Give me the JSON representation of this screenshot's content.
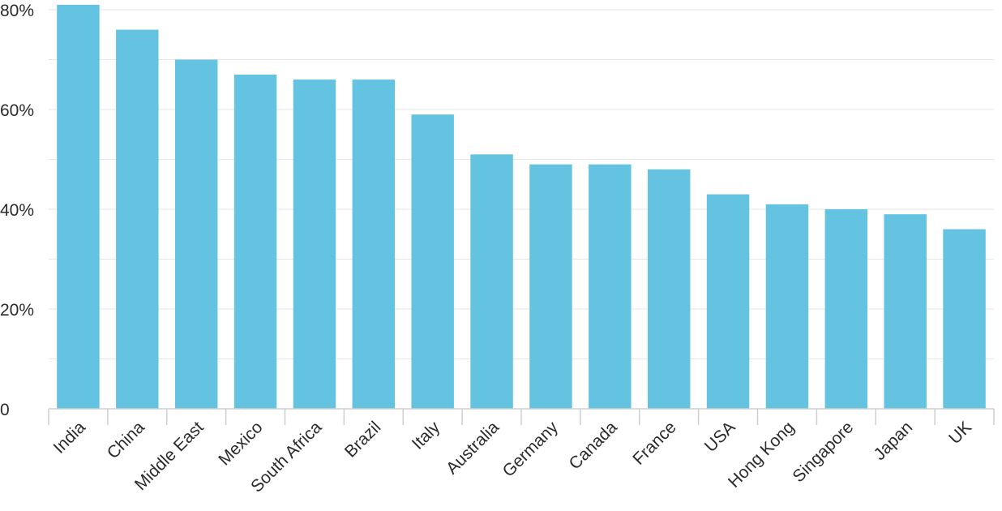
{
  "chart_data": {
    "type": "bar",
    "title": "",
    "xlabel": "",
    "ylabel": "",
    "categories": [
      "India",
      "China",
      "Middle East",
      "Mexico",
      "South Africa",
      "Brazil",
      "Italy",
      "Australia",
      "Germany",
      "Canada",
      "France",
      "USA",
      "Hong Kong",
      "Singapore",
      "Japan",
      "UK"
    ],
    "values": [
      81,
      76,
      70,
      67,
      66,
      66,
      59,
      51,
      49,
      49,
      48,
      43,
      41,
      40,
      39,
      36
    ],
    "ylim": [
      0,
      80
    ],
    "yticks": [
      0,
      20,
      40,
      60,
      80
    ],
    "ytick_labels": [
      "0",
      "20%",
      "40%",
      "60%",
      "80%"
    ],
    "grid": true,
    "legend": "none",
    "bar_color": "#65c3e2"
  }
}
